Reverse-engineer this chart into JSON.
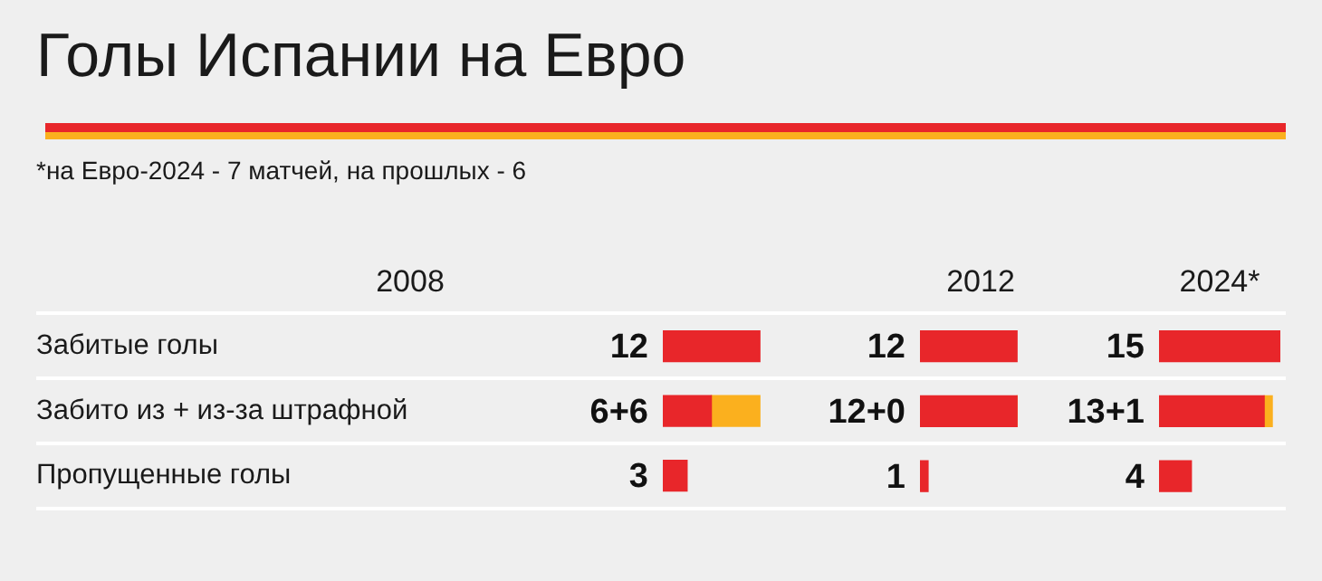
{
  "chart_data": [
    {
      "type": "other",
      "title": "Голы Испании на Евро",
      "subtitle": "*на Евро-2024 - 7 матчей, на прошлых - 6"
    },
    {
      "type": "bar",
      "orientation": "horizontal",
      "stacked": true,
      "grid": "y",
      "title": "2008",
      "categories": [
        "Забитые голы",
        "Забито из + из-за штрафной",
        "Пропущенные голы"
      ],
      "tick_labels": "y",
      "series": [
        {
          "color": "#e8262a",
          "values": [
            12,
            6,
            3
          ],
          "value_labels": [
            "12",
            "6+6",
            "3"
          ]
        },
        {
          "color": "#fbb01e",
          "values": [
            null,
            6,
            null
          ]
        }
      ]
    },
    {
      "type": "bar",
      "orientation": "horizontal",
      "stacked": true,
      "grid": "y",
      "title": "2012",
      "tick_labels": false,
      "series": [
        {
          "color": "#e8262a",
          "values": [
            12,
            12,
            1
          ],
          "value_labels": [
            "12",
            "12+0",
            "1"
          ]
        },
        {
          "color": "#fbb01e",
          "values": [
            null,
            0,
            null
          ]
        }
      ]
    },
    {
      "type": "bar",
      "orientation": "horizontal",
      "stacked": true,
      "grid": "y",
      "title": "2024*",
      "tick_labels": false,
      "series": [
        {
          "color": "#e8262a",
          "values": [
            15,
            13,
            4
          ],
          "value_labels": [
            "15",
            "13+1",
            "4"
          ]
        },
        {
          "color": "#fbb01e",
          "values": [
            null,
            1,
            null
          ]
        }
      ]
    }
  ]
}
